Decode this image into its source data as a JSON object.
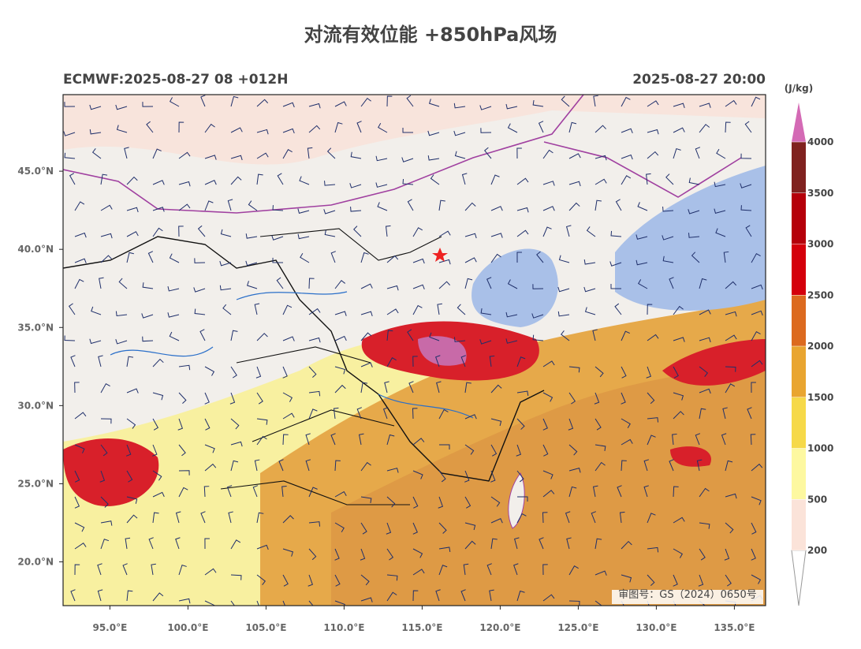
{
  "header": {
    "title": "对流有效位能 +850hPa风场",
    "left": "ECMWF:2025-08-27 08 +012H",
    "right": "2025-08-27 20:00"
  },
  "map": {
    "xlim": [
      92,
      137
    ],
    "ylim": [
      17.2,
      49.9
    ],
    "lon_ticks": [
      {
        "value": 95,
        "label": "95.0°E"
      },
      {
        "value": 100,
        "label": "100.0°E"
      },
      {
        "value": 105,
        "label": "105.0°E"
      },
      {
        "value": 110,
        "label": "110.0°E"
      },
      {
        "value": 115,
        "label": "115.0°E"
      },
      {
        "value": 120,
        "label": "120.0°E"
      },
      {
        "value": 125,
        "label": "125.0°E"
      },
      {
        "value": 130,
        "label": "130.0°E"
      },
      {
        "value": 135,
        "label": "135.0°E"
      }
    ],
    "lat_ticks": [
      {
        "value": 20,
        "label": "20.0°N"
      },
      {
        "value": 25,
        "label": "25.0°N"
      },
      {
        "value": 30,
        "label": "30.0°N"
      },
      {
        "value": 35,
        "label": "35.0°N"
      },
      {
        "value": 40,
        "label": "40.0°N"
      },
      {
        "value": 45,
        "label": "45.0°N"
      }
    ],
    "attribution": "审图号：GS（2024）0650号"
  },
  "colorbar": {
    "unit": "(J/kg)",
    "levels": [
      200,
      500,
      1000,
      1500,
      2000,
      2500,
      3000,
      3500,
      4000
    ],
    "colors": [
      "#ffffff",
      "#fbe3d9",
      "#fdf8a0",
      "#f6d949",
      "#e9a530",
      "#dc6a1f",
      "#d4000b",
      "#b5000a",
      "#80221f",
      "#d46ab5"
    ]
  }
}
